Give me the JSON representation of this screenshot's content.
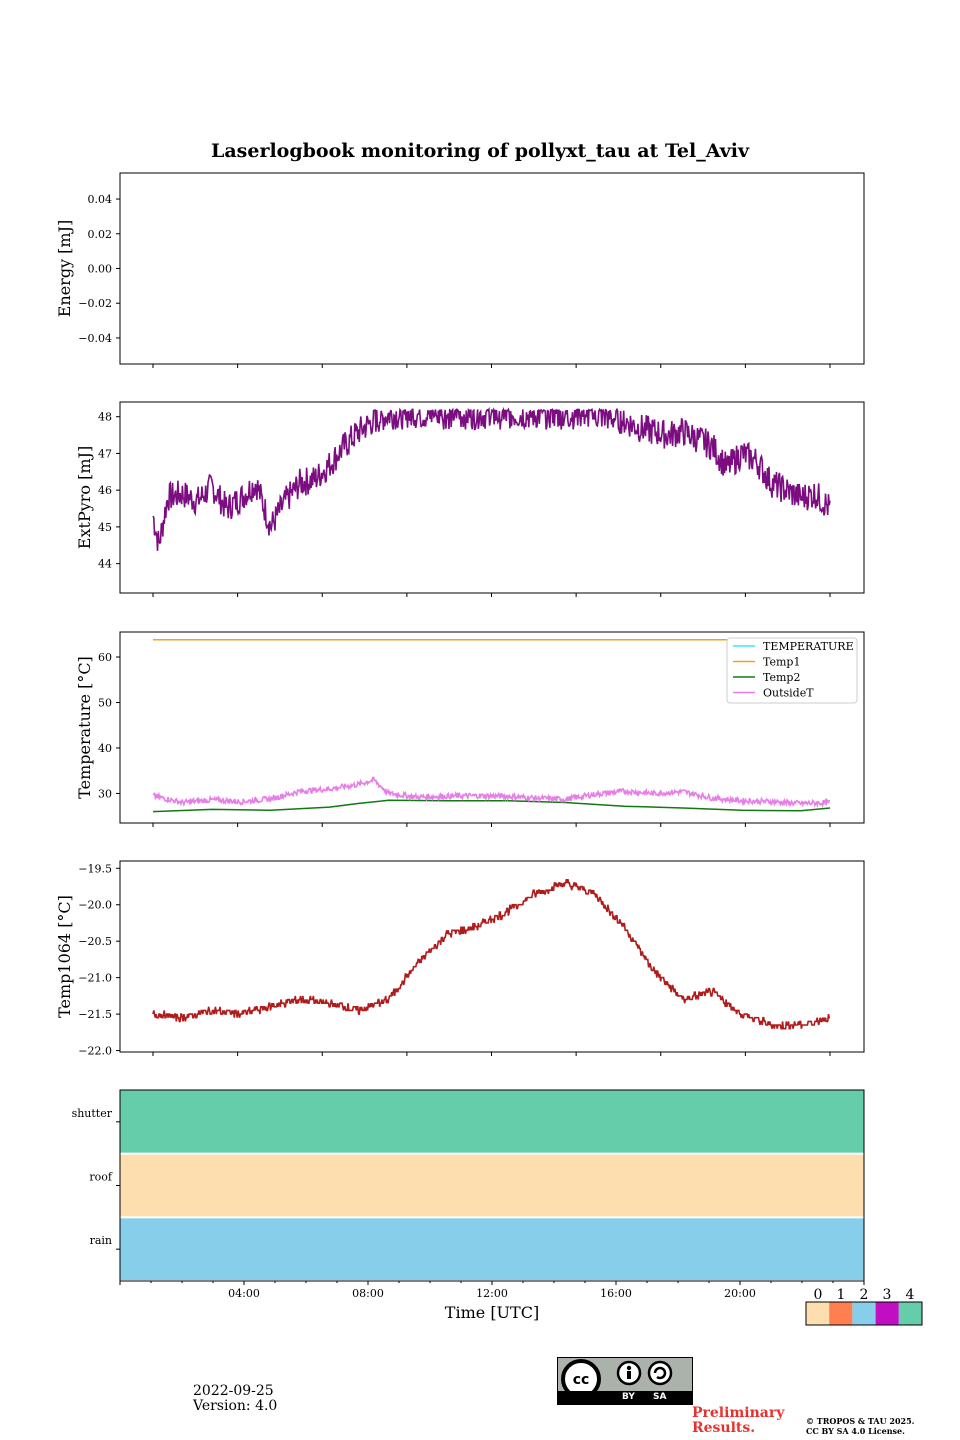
{
  "figure": {
    "title": "Laserlogbook monitoring of pollyxt_tau at Tel_Aviv",
    "date": "2022-09-25",
    "version": "Version: 4.0",
    "preliminary": "Preliminary\nResults.",
    "copyright": "© TROPOS & TAU 2025.\nCC BY SA 4.0 License.",
    "license_badge": [
      "BY",
      "SA"
    ]
  },
  "colors": {
    "energy": "#000000",
    "extpyro": "#7b0d80",
    "temperature": "#3be8e8",
    "temp1": "#f4a21b",
    "temp2": "#107a10",
    "outsideT": "#e77ee8",
    "temp1064": "#b01c1c",
    "status": [
      "#fddeae",
      "#ff7f50",
      "#87ceeb",
      "#c20ec2",
      "#66cdaa"
    ]
  },
  "chart_data": [
    {
      "type": "line",
      "ylabel": "Energy [mJ]",
      "ylim": [
        -0.055,
        0.055
      ],
      "yticks": [
        0.04,
        0.02,
        0.0,
        -0.02,
        -0.04
      ],
      "ytick_labels": [
        "0.04",
        "0.02",
        "0.00",
        "−0.02",
        "−0.04"
      ],
      "series": []
    },
    {
      "type": "line",
      "ylabel": "ExtPyro [mJ]",
      "ylim": [
        43.2,
        48.4
      ],
      "yticks": [
        44,
        45,
        46,
        47,
        48
      ],
      "ytick_labels": [
        "44",
        "45",
        "46",
        "47",
        "48"
      ],
      "series": [
        {
          "x": [
            0.0,
            0.2,
            0.5,
            1.0,
            1.5,
            2.0,
            2.5,
            3.0,
            3.5,
            4.0,
            4.5,
            5.0,
            5.5,
            6.0,
            6.5,
            7.0,
            7.5,
            8.0,
            9.0,
            10.0,
            11.0,
            12.0,
            13.0,
            14.0,
            15.0,
            15.5,
            16.0,
            16.5,
            17.0,
            17.5,
            18.0,
            18.5,
            19.0,
            19.5,
            20.0,
            20.5,
            21.0,
            21.5,
            22.0,
            22.5,
            23.0
          ],
          "y": [
            45.3,
            44.5,
            45.8,
            45.9,
            45.7,
            46.1,
            45.5,
            45.8,
            46.2,
            45.0,
            45.7,
            46.2,
            46.3,
            46.7,
            47.2,
            47.6,
            47.9,
            48.05,
            48.05,
            48.05,
            48.05,
            48.05,
            48.05,
            48.05,
            48.05,
            48.0,
            47.9,
            47.7,
            47.6,
            47.5,
            47.6,
            47.4,
            47.2,
            46.6,
            47.0,
            46.8,
            46.2,
            46.0,
            45.8,
            45.9,
            45.5
          ],
          "noise": 0.4
        }
      ]
    },
    {
      "type": "line",
      "ylabel": "Temperature [°C]",
      "ylim": [
        23.5,
        65.5
      ],
      "yticks": [
        30,
        40,
        50,
        60
      ],
      "ytick_labels": [
        "30",
        "40",
        "50",
        "60"
      ],
      "legend": [
        "TEMPERATURE",
        "Temp1",
        "Temp2",
        "OutsideT"
      ],
      "legend_loc": "upper right",
      "series": [
        {
          "name": "TEMPERATURE",
          "x": [],
          "y": []
        },
        {
          "name": "Temp1",
          "x": [
            0,
            23
          ],
          "y": [
            63.8,
            63.8
          ]
        },
        {
          "name": "Temp2",
          "x": [
            0,
            2,
            4,
            6,
            7,
            8,
            10,
            12,
            14,
            16,
            18,
            20,
            22,
            23
          ],
          "y": [
            26.0,
            26.5,
            26.3,
            27.0,
            27.8,
            28.5,
            28.4,
            28.4,
            28.0,
            27.2,
            26.8,
            26.3,
            26.2,
            26.8
          ]
        },
        {
          "name": "OutsideT",
          "x": [
            0,
            1,
            2,
            3,
            4,
            5,
            6,
            7,
            7.5,
            8,
            9,
            10,
            11,
            12,
            13,
            14,
            15,
            16,
            17,
            18,
            19,
            20,
            21,
            22,
            23
          ],
          "y": [
            29.5,
            28.0,
            28.6,
            28.2,
            28.8,
            30.5,
            31.0,
            32.0,
            33.0,
            30.0,
            29.2,
            29.4,
            29.5,
            29.4,
            29.0,
            28.7,
            29.8,
            30.5,
            30.0,
            30.4,
            29.0,
            28.4,
            28.2,
            27.8,
            28.0
          ],
          "noise": 0.6
        }
      ]
    },
    {
      "type": "line",
      "ylabel": "Temp1064 [°C]",
      "ylim": [
        -22.02,
        -19.4
      ],
      "yticks": [
        -19.5,
        -20.0,
        -20.5,
        -21.0,
        -21.5,
        -22.0
      ],
      "ytick_labels": [
        "−19.5",
        "−20.0",
        "−20.5",
        "−21.0",
        "−21.5",
        "−22.0"
      ],
      "series": [
        {
          "x": [
            0.0,
            1.0,
            2.0,
            3.0,
            4.0,
            5.0,
            6.0,
            7.0,
            8.0,
            9.0,
            10.0,
            11.0,
            12.0,
            13.0,
            14.0,
            15.0,
            16.0,
            17.0,
            18.0,
            19.0,
            20.0,
            21.0,
            22.0,
            23.0
          ],
          "y": [
            -21.5,
            -21.55,
            -21.45,
            -21.5,
            -21.4,
            -21.3,
            -21.35,
            -21.45,
            -21.3,
            -20.8,
            -20.4,
            -20.3,
            -20.1,
            -19.85,
            -19.7,
            -19.85,
            -20.3,
            -20.9,
            -21.3,
            -21.2,
            -21.5,
            -21.65,
            -21.65,
            -21.55
          ],
          "noise": 0.05,
          "step": 0.05
        }
      ]
    },
    {
      "type": "heatmap",
      "categories": [
        "shutter",
        "roof",
        "rain"
      ],
      "values": [
        4,
        0,
        2
      ],
      "xlabel": "Time [UTC]",
      "xticks": [
        "04:00",
        "08:00",
        "12:00",
        "16:00",
        "20:00"
      ],
      "colorbar": {
        "ticks": [
          "0",
          "1",
          "2",
          "3",
          "4"
        ]
      }
    }
  ]
}
